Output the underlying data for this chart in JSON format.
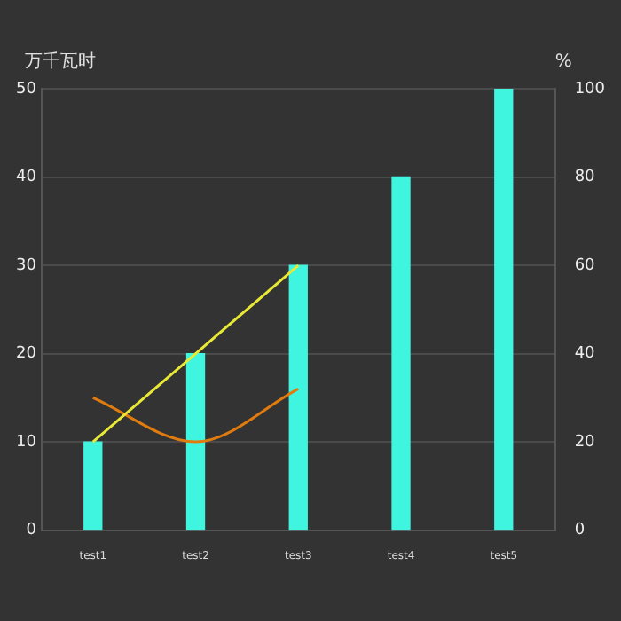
{
  "chart_data": {
    "type": "bar",
    "ylabel": "万千瓦时",
    "y2label": "%",
    "categories": [
      "test1",
      "test2",
      "test3",
      "test4",
      "test5"
    ],
    "series": [
      {
        "color": "#40f5e0",
        "values": [
          10,
          20,
          30,
          40,
          50
        ]
      },
      {
        "type": "line",
        "axis": "y2",
        "color": "#e8e836",
        "values": [
          20,
          40,
          60,
          null,
          null
        ]
      },
      {
        "type": "line",
        "axis": "y2",
        "color": "#e07b10",
        "values": [
          30,
          20,
          32,
          null,
          null
        ]
      }
    ],
    "ylim": [
      0,
      50
    ],
    "yticks": [
      0,
      10,
      20,
      30,
      40,
      50
    ],
    "y2lim": [
      0,
      100
    ],
    "y2ticks": [
      0,
      20,
      40,
      60,
      80,
      100
    ],
    "grid": "y",
    "marker": "none",
    "line_style": "solid"
  }
}
